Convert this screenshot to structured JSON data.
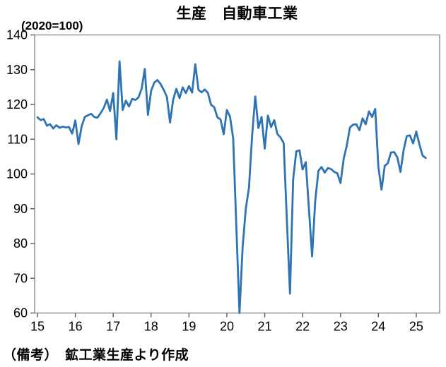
{
  "header": {
    "title": "生産　自動車工業",
    "unit_label": "(2020=100)"
  },
  "footer": {
    "note": "（備考）　鉱工業生産より作成"
  },
  "chart_data": {
    "type": "line",
    "title": "生産　自動車工業",
    "subtitle": "(2020=100)",
    "source_note": "（備考）　鉱工業生産より作成",
    "frequency": "monthly",
    "x_start": "2015-01",
    "x_end": "2025-04",
    "xlabel": "",
    "ylabel": "",
    "ylim": [
      60,
      140
    ],
    "yticks": [
      60,
      70,
      80,
      90,
      100,
      110,
      120,
      130,
      140
    ],
    "xticks": [
      "15",
      "16",
      "17",
      "18",
      "19",
      "20",
      "21",
      "22",
      "23",
      "24",
      "25"
    ],
    "grid": false,
    "legend": false,
    "line_color": "#2E74B5",
    "axis_color": "#8A8A8A",
    "tick_color": "#595959",
    "series": [
      {
        "name": "自動車工業 生産指数",
        "values": [
          116.3,
          115.5,
          115.8,
          113.9,
          114.3,
          113.1,
          114.0,
          113.3,
          113.6,
          113.4,
          113.5,
          111.6,
          115.4,
          108.6,
          113.7,
          116.4,
          116.9,
          117.3,
          116.4,
          116.2,
          117.5,
          119.0,
          121.4,
          118.1,
          123.3,
          110.0,
          132.4,
          118.4,
          121.1,
          119.4,
          121.6,
          121.3,
          122.0,
          124.5,
          130.2,
          117.0,
          123.9,
          126.3,
          127.0,
          125.9,
          124.2,
          122.2,
          114.8,
          121.4,
          124.5,
          121.8,
          124.9,
          123.3,
          125.3,
          123.4,
          131.6,
          124.2,
          123.5,
          124.3,
          123.3,
          119.9,
          119.2,
          116.3,
          115.7,
          111.4,
          118.4,
          116.5,
          110.3,
          85.0,
          60.0,
          79.0,
          90.0,
          96.0,
          111.0,
          122.3,
          113.2,
          116.4,
          107.3,
          116.8,
          113.5,
          115.5,
          111.5,
          110.5,
          108.9,
          87.0,
          65.6,
          98.5,
          106.5,
          106.8,
          101.3,
          103.4,
          90.0,
          76.3,
          92.3,
          100.9,
          102.0,
          100.4,
          101.7,
          101.4,
          100.6,
          100.2,
          97.4,
          104.3,
          108.2,
          113.4,
          114.2,
          114.3,
          112.6,
          116.0,
          114.3,
          118.0,
          116.4,
          118.7,
          102.0,
          95.5,
          102.3,
          103.1,
          106.2,
          106.3,
          104.8,
          100.6,
          106.9,
          110.9,
          111.1,
          108.8,
          112.2,
          108.5,
          105.3,
          104.6
        ]
      }
    ]
  }
}
